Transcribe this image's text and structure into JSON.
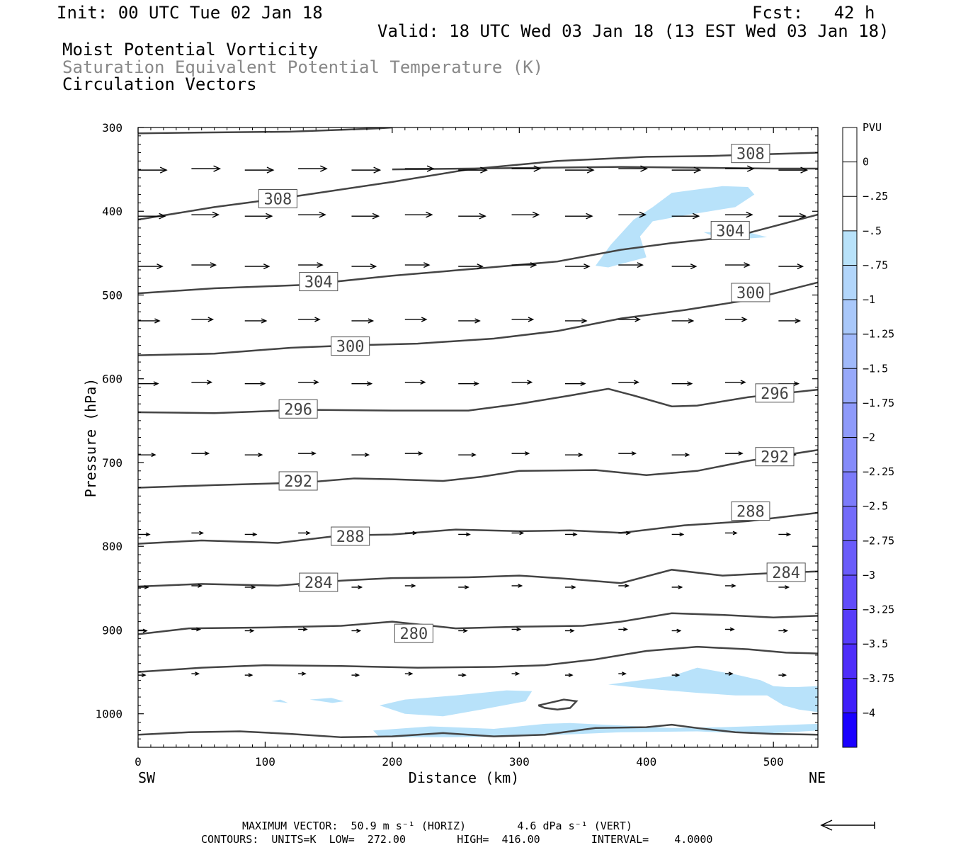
{
  "header": {
    "init": "Init: 00 UTC Tue 02 Jan 18",
    "fcst": "Fcst:   42 h",
    "valid": "Valid: 18 UTC Wed 03 Jan 18 (13 EST Wed 03 Jan 18)",
    "field1": "Moist Potential Vorticity",
    "field2": "Saturation Equivalent Potential Temperature (K)",
    "field3": "Circulation Vectors"
  },
  "footer": {
    "max_vector": "MAXIMUM VECTOR:  50.9 m s⁻¹ (HORIZ)        4.6 dPa s⁻¹ (VERT)",
    "contours": "CONTOURS:  UNITS=K  LOW=  272.00        HIGH=  416.00        INTERVAL=    4.0000"
  },
  "chart_data": {
    "type": "cross-section",
    "xlabel": "Distance (km)",
    "ylabel": "Pressure (hPa)",
    "xlim": [
      0,
      535
    ],
    "ylim": [
      1040,
      300
    ],
    "x_ticks": [
      "0",
      "100",
      "200",
      "300",
      "400",
      "500"
    ],
    "y_ticks": [
      "300",
      "400",
      "500",
      "600",
      "700",
      "800",
      "900",
      "1000"
    ],
    "left_end_label": "SW",
    "right_end_label": "NE",
    "contour_color": "#444444",
    "pv_fill_color": "#b8e2fa",
    "contours": [
      {
        "label": "308",
        "label_pos": [
          [
            110,
            385
          ],
          [
            482,
            331
          ]
        ],
        "x": [
          0,
          60,
          120,
          200,
          260,
          330,
          400,
          450,
          535
        ],
        "p": [
          410,
          395,
          383,
          365,
          350,
          340,
          335,
          334,
          330
        ]
      },
      {
        "label": "",
        "label_pos": [],
        "x": [
          0,
          50,
          120,
          190,
          200
        ],
        "p": [
          307,
          306,
          305,
          301,
          300
        ]
      },
      {
        "label": "",
        "label_pos": [],
        "x": [
          200,
          260,
          320,
          380,
          440,
          500,
          535
        ],
        "p": [
          350,
          349,
          348,
          347,
          348,
          349,
          349
        ]
      },
      {
        "label": "304",
        "label_pos": [
          [
            142,
            484
          ],
          [
            466,
            423
          ]
        ],
        "x": [
          0,
          60,
          130,
          200,
          270,
          330,
          380,
          420,
          470,
          535
        ],
        "p": [
          498,
          492,
          488,
          477,
          468,
          460,
          446,
          438,
          430,
          404
        ]
      },
      {
        "label": "300",
        "label_pos": [
          [
            167,
            561
          ],
          [
            482,
            497
          ]
        ],
        "x": [
          0,
          60,
          120,
          170,
          220,
          280,
          330,
          380,
          430,
          480,
          535
        ],
        "p": [
          572,
          570,
          563,
          560,
          558,
          552,
          543,
          528,
          518,
          506,
          485
        ]
      },
      {
        "label": "296",
        "label_pos": [
          [
            126,
            636
          ],
          [
            501,
            617
          ]
        ],
        "x": [
          0,
          60,
          130,
          200,
          260,
          300,
          340,
          370,
          390,
          420,
          440,
          480,
          535
        ],
        "p": [
          640,
          641,
          637,
          638,
          638,
          630,
          620,
          612,
          620,
          633,
          632,
          622,
          613
        ]
      },
      {
        "label": "292",
        "label_pos": [
          [
            126,
            722
          ],
          [
            501,
            693
          ]
        ],
        "x": [
          0,
          60,
          130,
          170,
          200,
          240,
          270,
          300,
          360,
          400,
          440,
          480,
          535
        ],
        "p": [
          730,
          727,
          724,
          719,
          720,
          722,
          717,
          710,
          709,
          715,
          710,
          698,
          685
        ]
      },
      {
        "label": "288",
        "label_pos": [
          [
            167,
            788
          ],
          [
            482,
            758
          ]
        ],
        "x": [
          0,
          50,
          110,
          160,
          200,
          250,
          300,
          340,
          380,
          430,
          480,
          535
        ],
        "p": [
          797,
          793,
          796,
          787,
          786,
          780,
          782,
          781,
          784,
          775,
          770,
          760
        ]
      },
      {
        "label": "284",
        "label_pos": [
          [
            142,
            843
          ],
          [
            510,
            831
          ]
        ],
        "x": [
          0,
          50,
          110,
          160,
          200,
          260,
          300,
          340,
          380,
          420,
          460,
          500,
          535
        ],
        "p": [
          848,
          845,
          847,
          841,
          838,
          837,
          835,
          839,
          844,
          828,
          835,
          832,
          830
        ]
      },
      {
        "label": "280",
        "label_pos": [
          [
            217,
            904
          ]
        ],
        "x": [
          0,
          40,
          100,
          160,
          200,
          250,
          300,
          350,
          380,
          420,
          460,
          500,
          535
        ],
        "p": [
          905,
          898,
          897,
          895,
          890,
          898,
          896,
          895,
          890,
          880,
          882,
          885,
          883
        ]
      },
      {
        "label": "",
        "label_pos": [],
        "x": [
          0,
          50,
          100,
          160,
          220,
          280,
          320,
          360,
          400,
          440,
          480,
          510,
          535
        ],
        "p": [
          950,
          945,
          942,
          943,
          945,
          944,
          942,
          935,
          925,
          920,
          923,
          927,
          928
        ]
      },
      {
        "label": "",
        "label_pos": [],
        "x": [
          0,
          40,
          80,
          120,
          160,
          200,
          240,
          280,
          320,
          360,
          400,
          420,
          440,
          470,
          500,
          535
        ],
        "p": [
          1025,
          1022,
          1021,
          1024,
          1028,
          1027,
          1023,
          1027,
          1025,
          1017,
          1016,
          1013,
          1017,
          1022,
          1024,
          1025
        ]
      },
      {
        "label": "",
        "label_pos": [],
        "x": [
          315,
          335,
          345,
          340,
          330,
          320,
          315
        ],
        "p": [
          990,
          983,
          985,
          993,
          995,
          993,
          990
        ]
      }
    ],
    "pv_shading": [
      {
        "level": "-0.25",
        "x": [
          360,
          372,
          390,
          405,
          420,
          435,
          460,
          480,
          485,
          470,
          430,
          405,
          395,
          400,
          380,
          370,
          360
        ],
        "p": [
          465,
          440,
          410,
          395,
          378,
          375,
          370,
          371,
          380,
          395,
          405,
          412,
          430,
          455,
          463,
          467,
          465
        ]
      },
      {
        "level": "-0.25",
        "x": [
          445,
          480,
          495,
          475,
          450,
          445
        ],
        "p": [
          425,
          425,
          431,
          433,
          428,
          425
        ]
      },
      {
        "level": "-0.25",
        "x": [
          190,
          210,
          250,
          290,
          310,
          305,
          270,
          240,
          210,
          190
        ],
        "p": [
          990,
          983,
          978,
          972,
          973,
          985,
          995,
          1003,
          1000,
          990
        ]
      },
      {
        "level": "-0.25",
        "x": [
          185,
          230,
          280,
          320,
          340,
          380,
          420,
          460,
          500,
          535,
          535,
          490,
          440,
          380,
          300,
          240,
          190,
          185
        ],
        "p": [
          1020,
          1015,
          1018,
          1012,
          1011,
          1014,
          1017,
          1016,
          1014,
          1012,
          1020,
          1024,
          1021,
          1022,
          1027,
          1028,
          1028,
          1020
        ]
      },
      {
        "level": "-0.25",
        "x": [
          370,
          420,
          440,
          470,
          490,
          500,
          510,
          520,
          535,
          535,
          520,
          508,
          495,
          470,
          440,
          400,
          370
        ],
        "p": [
          965,
          955,
          945,
          953,
          960,
          967,
          968,
          968,
          967,
          998,
          995,
          990,
          978,
          978,
          975,
          970,
          965
        ]
      },
      {
        "level": "-0.25",
        "x": [
          105,
          112,
          118,
          105
        ],
        "p": [
          985,
          983,
          987,
          985
        ]
      },
      {
        "level": "-0.25",
        "x": [
          135,
          152,
          162,
          153,
          135
        ],
        "p": [
          983,
          981,
          985,
          987,
          983
        ]
      }
    ],
    "vectors": {
      "pressures": [
        350,
        405,
        465,
        530,
        605,
        690,
        785,
        848,
        900,
        953
      ],
      "x_positions": [
        0,
        42,
        84,
        126,
        168,
        210,
        252,
        294,
        336,
        378,
        420,
        462,
        504
      ],
      "arrow_length_px": [
        40,
        38,
        34,
        30,
        28,
        24,
        16,
        14,
        12,
        10
      ],
      "head_color": "#000000"
    },
    "colorbar": {
      "label": "PVU",
      "levels": [
        "0",
        "-.25",
        "-.5",
        "-.75",
        "-1",
        "-1.25",
        "-1.5",
        "-1.75",
        "-2",
        "-2.25",
        "-2.5",
        "-2.75",
        "-3",
        "-3.25",
        "-3.5",
        "-3.75",
        "-4"
      ],
      "colors": [
        "#ffffff",
        "#ffffff",
        "#b8e2fa",
        "#b2d6fb",
        "#a9c8fa",
        "#a0b9fa",
        "#97a9fa",
        "#8e9afa",
        "#858bfa",
        "#7c7bfa",
        "#736bfa",
        "#6a5cfa",
        "#614cfa",
        "#573dfa",
        "#4e2dfa",
        "#3f1efa",
        "#1a00ff"
      ]
    },
    "reference_vector": "left-pointing arrow"
  }
}
